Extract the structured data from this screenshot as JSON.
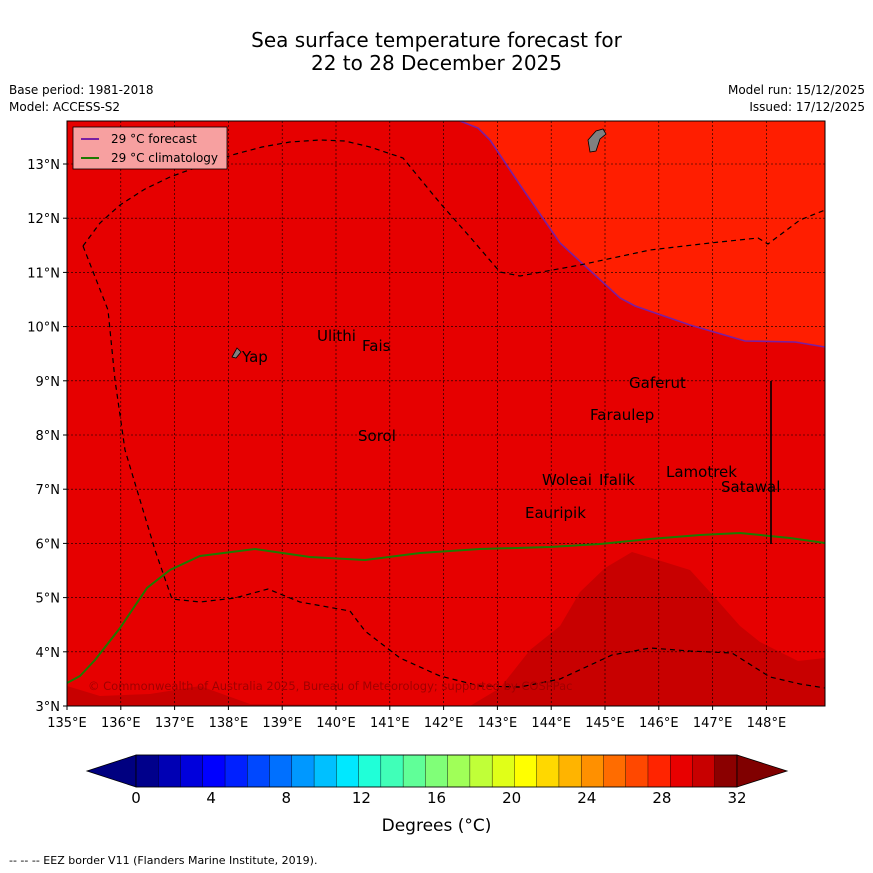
{
  "title": {
    "line1": "Sea surface temperature forecast for",
    "line2": "22 to 28 December 2025"
  },
  "meta": {
    "base_period": "Base period: 1981-2018",
    "model": "Model: ACCESS-S2",
    "model_run": "Model run: 15/12/2025",
    "issued": "Issued: 17/12/2025"
  },
  "legend": {
    "forecast_label": "29 °C  forecast",
    "climatology_label": "29 °C  climatology",
    "forecast_color": "#7a1fa2",
    "climatology_color": "#1e7a00"
  },
  "axes": {
    "x_ticks": [
      "135°E",
      "136°E",
      "137°E",
      "138°E",
      "139°E",
      "140°E",
      "141°E",
      "142°E",
      "143°E",
      "144°E",
      "145°E",
      "146°E",
      "147°E",
      "148°E"
    ],
    "y_ticks": [
      "3°N",
      "4°N",
      "5°N",
      "6°N",
      "7°N",
      "8°N",
      "9°N",
      "10°N",
      "11°N",
      "12°N",
      "13°N"
    ]
  },
  "places": [
    {
      "name": "Yap"
    },
    {
      "name": "Ulithi"
    },
    {
      "name": "Fais"
    },
    {
      "name": "Sorol"
    },
    {
      "name": "Gaferut"
    },
    {
      "name": "Faraulep"
    },
    {
      "name": "Woleai"
    },
    {
      "name": "Ifalik"
    },
    {
      "name": "Lamotrek"
    },
    {
      "name": "Satawal"
    },
    {
      "name": "Eauripik"
    }
  ],
  "copyright": "© Commonwealth of Australia 2025, Bureau of Meteorology; supported by COSPPac",
  "colorbar": {
    "ticks": [
      "0",
      "4",
      "8",
      "12",
      "16",
      "20",
      "24",
      "28",
      "32"
    ],
    "label": "Degrees (°C)",
    "colors": [
      "#00008b",
      "#0000b4",
      "#0000dc",
      "#0000ff",
      "#0020ff",
      "#0048ff",
      "#0070ff",
      "#0098ff",
      "#00c0ff",
      "#00e8ff",
      "#20ffd8",
      "#40ffb8",
      "#60ff98",
      "#80ff78",
      "#a0ff58",
      "#c0ff38",
      "#e0ff18",
      "#ffff00",
      "#ffd800",
      "#ffb400",
      "#ff9000",
      "#ff6c00",
      "#ff4800",
      "#ff2400",
      "#e80000",
      "#c80000",
      "#8b0000"
    ],
    "low_color": "#000080",
    "high_color": "#800000"
  },
  "fill_colors": {
    "main": "#e60000",
    "warm_ne": "#ff1e00",
    "south": "#c80000"
  },
  "footnote": "--  --  -- EEZ border V11 (Flanders Marine Institute, 2019)."
}
